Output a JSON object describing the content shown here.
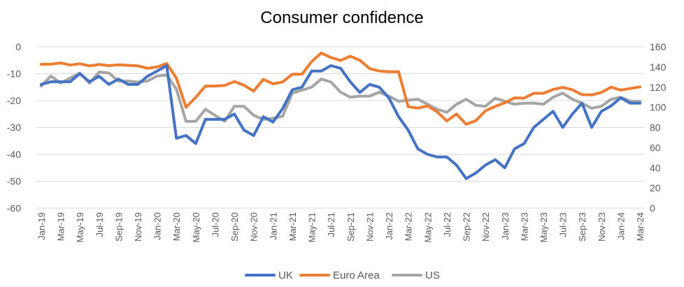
{
  "chart_data": {
    "type": "line",
    "title": "Consumer confidence",
    "x": [
      "Jan-19",
      "Feb-19",
      "Mar-19",
      "Apr-19",
      "May-19",
      "Jun-19",
      "Jul-19",
      "Aug-19",
      "Sep-19",
      "Oct-19",
      "Nov-19",
      "Dec-19",
      "Jan-20",
      "Feb-20",
      "Mar-20",
      "Apr-20",
      "May-20",
      "Jun-20",
      "Jul-20",
      "Aug-20",
      "Sep-20",
      "Oct-20",
      "Nov-20",
      "Dec-20",
      "Jan-21",
      "Feb-21",
      "Mar-21",
      "Apr-21",
      "May-21",
      "Jun-21",
      "Jul-21",
      "Aug-21",
      "Sep-21",
      "Oct-21",
      "Nov-21",
      "Dec-21",
      "Jan-22",
      "Feb-22",
      "Mar-22",
      "Apr-22",
      "May-22",
      "Jun-22",
      "Jul-22",
      "Aug-22",
      "Sep-22",
      "Oct-22",
      "Nov-22",
      "Dec-22",
      "Jan-23",
      "Feb-23",
      "Mar-23",
      "Apr-23",
      "May-23",
      "Jun-23",
      "Jul-23",
      "Aug-23",
      "Sep-23",
      "Oct-23",
      "Nov-23",
      "Dec-23",
      "Jan-24",
      "Feb-24",
      "Mar-24"
    ],
    "x_tick_labels": [
      "Jan-19",
      "Mar-19",
      "May-19",
      "Jul-19",
      "Sep-19",
      "Nov-19",
      "Jan-20",
      "Mar-20",
      "May-20",
      "Jul-20",
      "Sep-20",
      "Nov-20",
      "Jan-21",
      "Mar-21",
      "May-21",
      "Jul-21",
      "Sep-21",
      "Nov-21",
      "Jan-22",
      "Mar-22",
      "May-22",
      "Jul-22",
      "Sep-22",
      "Nov-22",
      "Jan-23",
      "Mar-23",
      "May-23",
      "Jul-23",
      "Sep-23",
      "Nov-23",
      "Jan-24",
      "Mar-24"
    ],
    "y_left": {
      "min": -60,
      "max": 0,
      "ticks": [
        "0",
        "-10",
        "-20",
        "-30",
        "-40",
        "-50",
        "-60"
      ]
    },
    "y_right": {
      "min": 0,
      "max": 160,
      "ticks": [
        "160",
        "140",
        "120",
        "100",
        "80",
        "60",
        "40",
        "20",
        "0"
      ]
    },
    "gridlines": true,
    "legend_position": "bottom",
    "series": [
      {
        "name": "UK",
        "axis": "left",
        "color": "#4472c4",
        "values": [
          -14,
          -13,
          -13,
          -13,
          -10,
          -13,
          -11,
          -14,
          -12,
          -14,
          -14,
          -11,
          -9,
          -7,
          -34,
          -33,
          -36,
          -27,
          -27,
          -27,
          -25,
          -31,
          -33,
          -26,
          -28,
          -23,
          -16,
          -15,
          -9,
          -9,
          -7,
          -8,
          -13,
          -17,
          -14,
          -15,
          -19,
          -26,
          -31,
          -38,
          -40,
          -41,
          -41,
          -44,
          -49,
          -47,
          -44,
          -42,
          -45,
          -38,
          -36,
          -30,
          -27,
          -24,
          -30,
          -25,
          -21,
          -30,
          -24,
          -22,
          -19,
          -21,
          -21
        ]
      },
      {
        "name": "Euro Area",
        "axis": "left",
        "color": "#ed7d31",
        "values": [
          -6.5,
          -6.5,
          -6,
          -6.8,
          -6.3,
          -7.1,
          -6.6,
          -7,
          -6.7,
          -6.9,
          -7.1,
          -8,
          -7.5,
          -6.2,
          -11.7,
          -22.5,
          -18.8,
          -14.6,
          -14.6,
          -14.4,
          -12.9,
          -14.3,
          -16.5,
          -12.1,
          -13.8,
          -13.1,
          -10.2,
          -10.2,
          -5.5,
          -2.3,
          -4,
          -5.1,
          -3.5,
          -5,
          -8.1,
          -9,
          -9.3,
          -9.3,
          -22.3,
          -22.8,
          -22,
          -24.2,
          -27.6,
          -25,
          -28.8,
          -27.5,
          -23.8,
          -22.2,
          -20.8,
          -19,
          -19.1,
          -17.3,
          -17.3,
          -15.9,
          -15.1,
          -16,
          -17.8,
          -17.9,
          -17,
          -15,
          -16.1,
          -15.5,
          -14.9
        ]
      },
      {
        "name": "US",
        "axis": "right",
        "color": "#a5a5a5",
        "values": [
          121,
          131,
          124,
          129,
          134,
          124,
          135,
          134,
          126,
          126,
          125,
          126,
          131,
          132,
          118,
          86,
          86,
          98,
          92,
          86,
          101,
          101,
          92,
          88,
          89,
          91,
          114,
          117,
          120,
          128,
          125,
          115,
          110,
          111,
          111,
          115,
          111,
          106,
          107,
          108,
          103,
          98,
          95,
          103,
          108,
          102,
          101,
          109,
          106,
          103,
          104,
          104,
          103,
          110,
          114,
          108,
          104,
          99,
          101,
          108,
          110,
          106,
          106
        ]
      }
    ]
  }
}
